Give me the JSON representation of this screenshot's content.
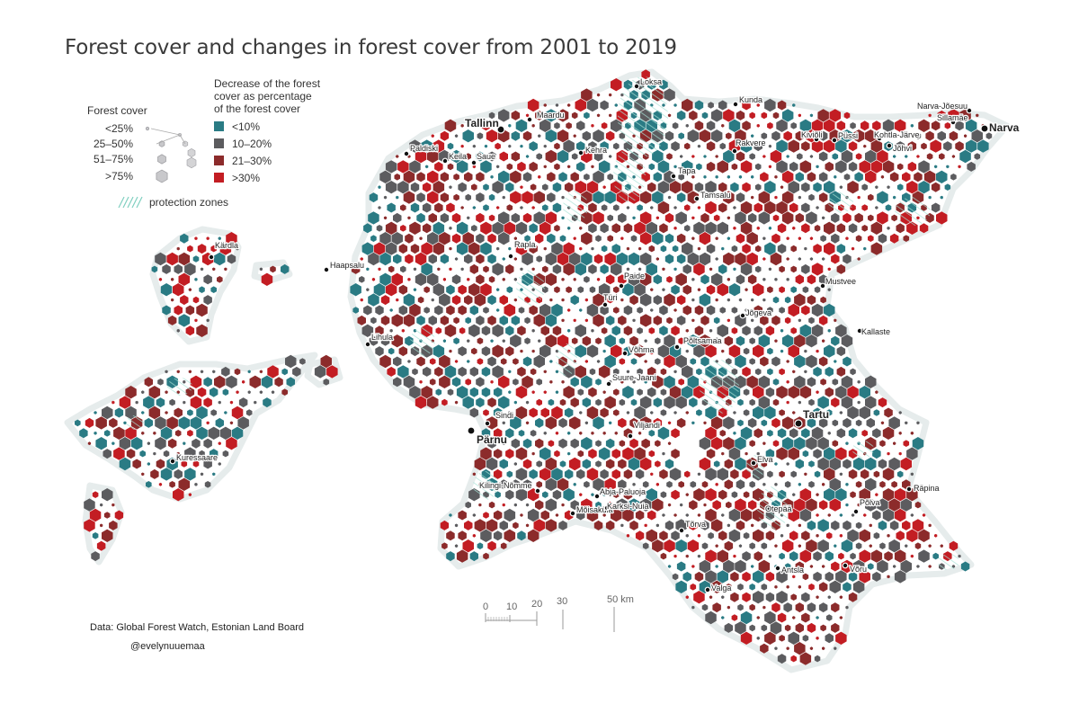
{
  "title": "Forest cover and changes in forest cover from 2001 to 2019",
  "legend": {
    "forest_cover_title": "Forest cover",
    "forest_cover_levels": [
      "<25%",
      "25–50%",
      "51–75%",
      ">75%"
    ],
    "decrease_title_lines": [
      "Decrease of the forest",
      "cover as percentage",
      "of the forest cover"
    ],
    "decrease_classes": [
      {
        "label": "<10%",
        "color": "#2a7b84"
      },
      {
        "label": "10–20%",
        "color": "#5c5c5f"
      },
      {
        "label": "21–30%",
        "color": "#8c2b2b"
      },
      {
        "label": ">30%",
        "color": "#c31d23"
      }
    ],
    "protection_label": "protection zones",
    "protection_color": "#7fcfc0"
  },
  "scale_bar": {
    "ticks": [
      "0",
      "10",
      "20",
      "30",
      "50 km"
    ]
  },
  "credits": {
    "source": "Data: Global Forest Watch, Estonian Land Board",
    "author": "@evelynuuemaa"
  },
  "cities": [
    {
      "name": "Tallinn",
      "major": true
    },
    {
      "name": "Maardu",
      "major": false
    },
    {
      "name": "Loksa",
      "major": false
    },
    {
      "name": "Kunda",
      "major": false
    },
    {
      "name": "Narva-Jõesuu",
      "major": false
    },
    {
      "name": "Sillamäe",
      "major": false
    },
    {
      "name": "Narva",
      "major": true
    },
    {
      "name": "Kiviõli",
      "major": false
    },
    {
      "name": "Püssi",
      "major": false
    },
    {
      "name": "Kohtla-Järve",
      "major": false
    },
    {
      "name": "Jõhvi",
      "major": false
    },
    {
      "name": "Rakvere",
      "major": false
    },
    {
      "name": "Paldiski",
      "major": false
    },
    {
      "name": "Keila",
      "major": false
    },
    {
      "name": "Saue",
      "major": false
    },
    {
      "name": "Kehra",
      "major": false
    },
    {
      "name": "Tapa",
      "major": false
    },
    {
      "name": "Tamsalu",
      "major": false
    },
    {
      "name": "Kärdla",
      "major": false
    },
    {
      "name": "Haapsalu",
      "major": false
    },
    {
      "name": "Rapla",
      "major": false
    },
    {
      "name": "Paide",
      "major": false
    },
    {
      "name": "Türi",
      "major": false
    },
    {
      "name": "Mustvee",
      "major": false
    },
    {
      "name": "Jõgeva",
      "major": false
    },
    {
      "name": "Lihula",
      "major": false
    },
    {
      "name": "Kallaste",
      "major": false
    },
    {
      "name": "Võhma",
      "major": false
    },
    {
      "name": "Põltsamaa",
      "major": false
    },
    {
      "name": "Suure-Jaani",
      "major": false
    },
    {
      "name": "Sindi",
      "major": false
    },
    {
      "name": "Pärnu",
      "major": true
    },
    {
      "name": "Viljandi",
      "major": false
    },
    {
      "name": "Tartu",
      "major": true
    },
    {
      "name": "Kuressaare",
      "major": false
    },
    {
      "name": "Elva",
      "major": false
    },
    {
      "name": "Kilingi-Nõmme",
      "major": false
    },
    {
      "name": "Abja-Paluoja",
      "major": false
    },
    {
      "name": "Mõisaküla",
      "major": false
    },
    {
      "name": "Karksi-Nuia",
      "major": false
    },
    {
      "name": "Räpina",
      "major": false
    },
    {
      "name": "Põlva",
      "major": false
    },
    {
      "name": "Otepää",
      "major": false
    },
    {
      "name": "Tõrva",
      "major": false
    },
    {
      "name": "Antsla",
      "major": false
    },
    {
      "name": "Võru",
      "major": false
    },
    {
      "name": "Valga",
      "major": false
    }
  ]
}
